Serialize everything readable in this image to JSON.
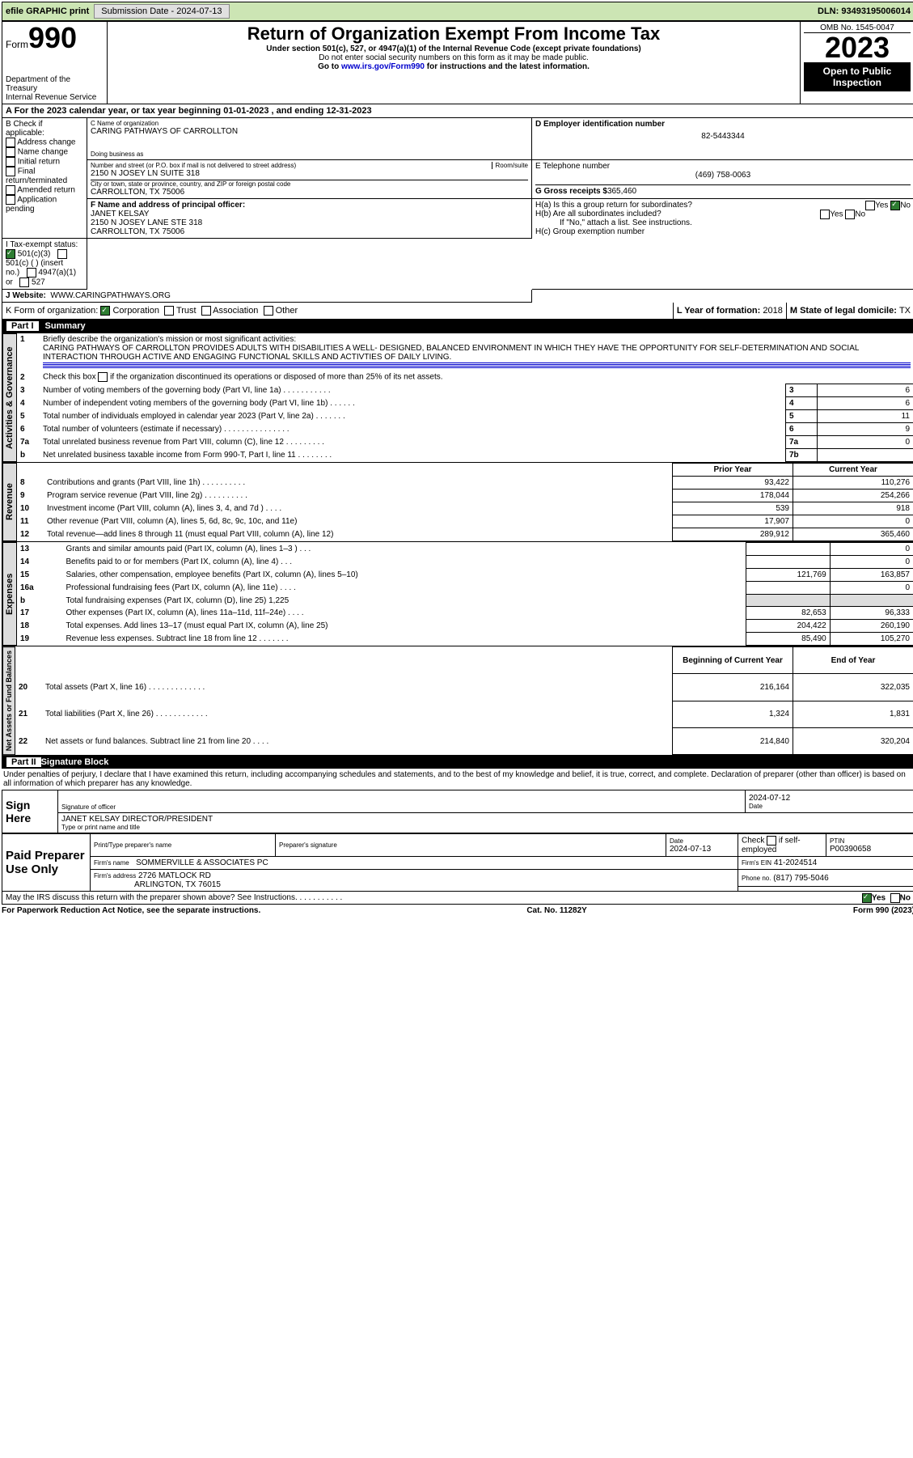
{
  "topbar": {
    "efile": "efile GRAPHIC print",
    "sub_label": "Submission Date - ",
    "sub_date": "2024-07-13",
    "dln": "DLN: 93493195006014"
  },
  "header": {
    "form_word": "Form",
    "form_num": "990",
    "title": "Return of Organization Exempt From Income Tax",
    "subtitle": "Under section 501(c), 527, or 4947(a)(1) of the Internal Revenue Code (except private foundations)",
    "ssn": "Do not enter social security numbers on this form as it may be made public.",
    "goto": "Go to ",
    "goto_link": "www.irs.gov/Form990",
    "goto_after": " for instructions and the latest information.",
    "dept": "Department of the Treasury",
    "irs": "Internal Revenue Service",
    "omb": "OMB No. 1545-0047",
    "year": "2023",
    "open": "Open to Public Inspection"
  },
  "sectionA": {
    "text": "A For the 2023 calendar year, or tax year beginning ",
    "begin": "01-01-2023",
    "mid": " , and ending ",
    "end": "12-31-2023"
  },
  "boxB": {
    "label": "B Check if applicable:",
    "items": [
      "Address change",
      "Name change",
      "Initial return",
      "Final return/terminated",
      "Amended return",
      "Application pending"
    ]
  },
  "boxC": {
    "name_lbl": "C Name of organization",
    "name": "CARING PATHWAYS OF CARROLLTON",
    "dba_lbl": "Doing business as",
    "dba": "",
    "street_lbl": "Number and street (or P.O. box if mail is not delivered to street address)",
    "room_lbl": "Room/suite",
    "street": "2150 N JOSEY LN SUITE 318",
    "city_lbl": "City or town, state or province, country, and ZIP or foreign postal code",
    "city": "CARROLLTON, TX  75006"
  },
  "boxD": {
    "label": "D Employer identification number",
    "ein": "82-5443344"
  },
  "boxE": {
    "label": "E Telephone number",
    "phone": "(469) 758-0063"
  },
  "boxG": {
    "label": "G Gross receipts $",
    "amount": "365,460"
  },
  "boxF": {
    "label": "F Name and address of principal officer:",
    "name": "JANET KELSAY",
    "addr1": "2150 N JOSEY LANE STE 318",
    "addr2": "CARROLLTON, TX  75006"
  },
  "boxH": {
    "a": "H(a)  Is this a group return for subordinates?",
    "a_yes": "Yes",
    "a_no": "No",
    "b": "H(b)  Are all subordinates included?",
    "b_yes": "Yes",
    "b_no": "No",
    "b_note": "If \"No,\" attach a list. See instructions.",
    "c": "H(c)  Group exemption number"
  },
  "boxI": {
    "label": "I   Tax-exempt status:",
    "c3": "501(c)(3)",
    "c": "501(c) (  ) (insert no.)",
    "a1": "4947(a)(1) or",
    "s527": "527"
  },
  "boxJ": {
    "label": "J   Website:",
    "url": "WWW.CARINGPATHWAYS.ORG"
  },
  "boxK": {
    "label": "K Form of organization:",
    "corp": "Corporation",
    "trust": "Trust",
    "assoc": "Association",
    "other": "Other"
  },
  "boxL": {
    "label": "L Year of formation: ",
    "val": "2018"
  },
  "boxM": {
    "label": "M State of legal domicile: ",
    "val": "TX"
  },
  "part1": {
    "label": "Part I",
    "title": "Summary"
  },
  "summary": {
    "q1": "Briefly describe the organization's mission or most significant activities:",
    "mission": "CARING PATHWAYS OF CARROLLTON PROVIDES ADULTS WITH DISABILITIES A WELL- DESIGNED, BALANCED ENVIRONMENT IN WHICH THEY HAVE THE OPPORTUNITY FOR SELF-DETERMINATION AND SOCIAL INTERACTION THROUGH ACTIVE AND ENGAGING FUNCTIONAL SKILLS AND ACTIVTIES OF DAILY LIVING.",
    "q2": "Check this box        if the organization discontinued its operations or disposed of more than 25% of its net assets.",
    "q3": "Number of voting members of the governing body (Part VI, line 1a)   .    .    .    .    .    .    .    .    .    .    .",
    "q4": "Number of independent voting members of the governing body (Part VI, line 1b)    .    .    .    .    .    .",
    "q5": "Total number of individuals employed in calendar year 2023 (Part V, line 2a)    .    .    .    .    .    .    .",
    "q6": "Total number of volunteers (estimate if necessary)    .    .    .    .    .    .    .    .    .    .    .    .    .    .    .",
    "q7a": "Total unrelated business revenue from Part VIII, column (C), line 12    .    .    .    .    .    .    .    .    .",
    "q7b": "Net unrelated business taxable income from Form 990-T, Part I, line 11    .    .    .    .    .    .    .    .",
    "v3": "6",
    "v4": "6",
    "v5": "11",
    "v6": "9",
    "v7a": "0",
    "v7b": ""
  },
  "rev_hdr": {
    "prior": "Prior Year",
    "curr": "Current Year"
  },
  "revenue": [
    {
      "n": "8",
      "t": "Contributions and grants (Part VIII, line 1h)    .    .    .    .    .    .    .    .    .    .",
      "p": "93,422",
      "c": "110,276"
    },
    {
      "n": "9",
      "t": "Program service revenue (Part VIII, line 2g)    .    .    .    .    .    .    .    .    .    .",
      "p": "178,044",
      "c": "254,266"
    },
    {
      "n": "10",
      "t": "Investment income (Part VIII, column (A), lines 3, 4, and 7d )    .    .    .    .",
      "p": "539",
      "c": "918"
    },
    {
      "n": "11",
      "t": "Other revenue (Part VIII, column (A), lines 5, 6d, 8c, 9c, 10c, and 11e)",
      "p": "17,907",
      "c": "0"
    },
    {
      "n": "12",
      "t": "Total revenue—add lines 8 through 11 (must equal Part VIII, column (A), line 12)",
      "p": "289,912",
      "c": "365,460"
    }
  ],
  "expenses": [
    {
      "n": "13",
      "t": "Grants and similar amounts paid (Part IX, column (A), lines 1–3 )    .    .    .",
      "p": "",
      "c": "0"
    },
    {
      "n": "14",
      "t": "Benefits paid to or for members (Part IX, column (A), line 4)    .    .    .",
      "p": "",
      "c": "0"
    },
    {
      "n": "15",
      "t": "Salaries, other compensation, employee benefits (Part IX, column (A), lines 5–10)",
      "p": "121,769",
      "c": "163,857"
    },
    {
      "n": "16a",
      "t": "Professional fundraising fees (Part IX, column (A), line 11e)    .    .    .    .",
      "p": "",
      "c": "0"
    },
    {
      "n": "b",
      "t": "Total fundraising expenses (Part IX, column (D), line 25) 1,225",
      "p": "shade",
      "c": "shade"
    },
    {
      "n": "17",
      "t": "Other expenses (Part IX, column (A), lines 11a–11d, 11f–24e)    .    .    .    .",
      "p": "82,653",
      "c": "96,333"
    },
    {
      "n": "18",
      "t": "Total expenses. Add lines 13–17 (must equal Part IX, column (A), line 25)",
      "p": "204,422",
      "c": "260,190"
    },
    {
      "n": "19",
      "t": "Revenue less expenses. Subtract line 18 from line 12    .    .    .    .    .    .    .",
      "p": "85,490",
      "c": "105,270"
    }
  ],
  "net_hdr": {
    "begin": "Beginning of Current Year",
    "end": "End of Year"
  },
  "net": [
    {
      "n": "20",
      "t": "Total assets (Part X, line 16)    .    .    .    .    .    .    .    .    .    .    .    .    .",
      "p": "216,164",
      "c": "322,035"
    },
    {
      "n": "21",
      "t": "Total liabilities (Part X, line 26)    .    .    .    .    .    .    .    .    .    .    .    .",
      "p": "1,324",
      "c": "1,831"
    },
    {
      "n": "22",
      "t": "Net assets or fund balances. Subtract line 21 from line 20    .    .    .    .",
      "p": "214,840",
      "c": "320,204"
    }
  ],
  "tabs": {
    "gov": "Activities & Governance",
    "rev": "Revenue",
    "exp": "Expenses",
    "net": "Net Assets or Fund Balances"
  },
  "part2": {
    "label": "Part II",
    "title": "Signature Block"
  },
  "perjury": "Under penalties of perjury, I declare that I have examined this return, including accompanying schedules and statements, and to the best of my knowledge and belief, it is true, correct, and complete. Declaration of preparer (other than officer) is based on all information of which preparer has any knowledge.",
  "sign": {
    "here": "Sign Here",
    "sig_lbl": "Signature of officer",
    "date_lbl": "Date",
    "date": "2024-07-12",
    "name": "JANET KELSAY DIRECTOR/PRESIDENT",
    "name_lbl": "Type or print name and title"
  },
  "paid": {
    "label": "Paid Preparer Use Only",
    "pt_lbl": "Print/Type preparer's name",
    "ps_lbl": "Preparer's signature",
    "d_lbl": "Date",
    "d": "2024-07-13",
    "se_lbl": "Check         if self-employed",
    "ptin_lbl": "PTIN",
    "ptin": "P00390658",
    "firm_lbl": "Firm's name",
    "firm": "SOMMERVILLE & ASSOCIATES PC",
    "ein_lbl": "Firm's EIN",
    "ein": "41-2024514",
    "addr_lbl": "Firm's address",
    "addr1": "2726 MATLOCK RD",
    "addr2": "ARLINGTON, TX  76015",
    "ph_lbl": "Phone no.",
    "ph": "(817) 795-5046"
  },
  "discuss": "May the IRS discuss this return with the preparer shown above? See Instructions.    .    .    .    .    .    .    .    .    .    .",
  "discuss_yes": "Yes",
  "discuss_no": "No",
  "footer": {
    "pra": "For Paperwork Reduction Act Notice, see the separate instructions.",
    "cat": "Cat. No. 11282Y",
    "form": "Form 990 (2023)"
  }
}
